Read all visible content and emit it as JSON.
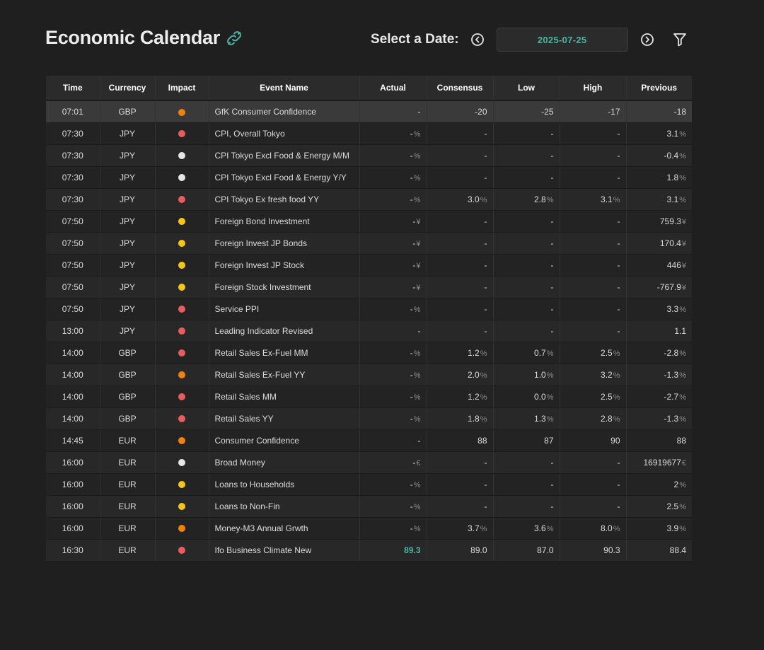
{
  "header": {
    "title": "Economic Calendar",
    "title_icon": "link-icon",
    "date_label": "Select a Date:",
    "selected_date": "2025-07-25",
    "prev_icon": "chevron-left-circle-icon",
    "next_icon": "chevron-right-circle-icon",
    "filter_icon": "filter-icon"
  },
  "impact_colors": {
    "high": "#e85d5d",
    "medium": "#f0820f",
    "low": "#f5c518",
    "none": "#e6e6e6"
  },
  "accent_color": "#4fb3a4",
  "table": {
    "columns": [
      "Time",
      "Currency",
      "Impact",
      "Event Name",
      "Actual",
      "Consensus",
      "Low",
      "High",
      "Previous"
    ],
    "rows": [
      {
        "time": "07:01",
        "currency": "GBP",
        "impact": "medium",
        "event": "GfK Consumer Confidence",
        "actual": {
          "v": "-",
          "u": ""
        },
        "consensus": {
          "v": "-20",
          "u": ""
        },
        "low": {
          "v": "-25",
          "u": ""
        },
        "high": {
          "v": "-17",
          "u": ""
        },
        "previous": {
          "v": "-18",
          "u": ""
        }
      },
      {
        "time": "07:30",
        "currency": "JPY",
        "impact": "high",
        "event": "CPI, Overall Tokyo",
        "actual": {
          "v": "-",
          "u": "%"
        },
        "consensus": {
          "v": "-",
          "u": ""
        },
        "low": {
          "v": "-",
          "u": ""
        },
        "high": {
          "v": "-",
          "u": ""
        },
        "previous": {
          "v": "3.1",
          "u": "%"
        }
      },
      {
        "time": "07:30",
        "currency": "JPY",
        "impact": "none",
        "event": "CPI Tokyo Excl Food & Energy M/M",
        "actual": {
          "v": "-",
          "u": "%"
        },
        "consensus": {
          "v": "-",
          "u": ""
        },
        "low": {
          "v": "-",
          "u": ""
        },
        "high": {
          "v": "-",
          "u": ""
        },
        "previous": {
          "v": "-0.4",
          "u": "%"
        }
      },
      {
        "time": "07:30",
        "currency": "JPY",
        "impact": "none",
        "event": "CPI Tokyo Excl Food & Energy Y/Y",
        "actual": {
          "v": "-",
          "u": "%"
        },
        "consensus": {
          "v": "-",
          "u": ""
        },
        "low": {
          "v": "-",
          "u": ""
        },
        "high": {
          "v": "-",
          "u": ""
        },
        "previous": {
          "v": "1.8",
          "u": "%"
        }
      },
      {
        "time": "07:30",
        "currency": "JPY",
        "impact": "high",
        "event": "CPI Tokyo Ex fresh food YY",
        "actual": {
          "v": "-",
          "u": "%"
        },
        "consensus": {
          "v": "3.0",
          "u": "%"
        },
        "low": {
          "v": "2.8",
          "u": "%"
        },
        "high": {
          "v": "3.1",
          "u": "%"
        },
        "previous": {
          "v": "3.1",
          "u": "%"
        }
      },
      {
        "time": "07:50",
        "currency": "JPY",
        "impact": "low",
        "event": "Foreign Bond Investment",
        "actual": {
          "v": "-",
          "u": "¥"
        },
        "consensus": {
          "v": "-",
          "u": ""
        },
        "low": {
          "v": "-",
          "u": ""
        },
        "high": {
          "v": "-",
          "u": ""
        },
        "previous": {
          "v": "759.3",
          "u": "¥"
        }
      },
      {
        "time": "07:50",
        "currency": "JPY",
        "impact": "low",
        "event": "Foreign Invest JP Bonds",
        "actual": {
          "v": "-",
          "u": "¥"
        },
        "consensus": {
          "v": "-",
          "u": ""
        },
        "low": {
          "v": "-",
          "u": ""
        },
        "high": {
          "v": "-",
          "u": ""
        },
        "previous": {
          "v": "170.4",
          "u": "¥"
        }
      },
      {
        "time": "07:50",
        "currency": "JPY",
        "impact": "low",
        "event": "Foreign Invest JP Stock",
        "actual": {
          "v": "-",
          "u": "¥"
        },
        "consensus": {
          "v": "-",
          "u": ""
        },
        "low": {
          "v": "-",
          "u": ""
        },
        "high": {
          "v": "-",
          "u": ""
        },
        "previous": {
          "v": "446",
          "u": "¥"
        }
      },
      {
        "time": "07:50",
        "currency": "JPY",
        "impact": "low",
        "event": "Foreign Stock Investment",
        "actual": {
          "v": "-",
          "u": "¥"
        },
        "consensus": {
          "v": "-",
          "u": ""
        },
        "low": {
          "v": "-",
          "u": ""
        },
        "high": {
          "v": "-",
          "u": ""
        },
        "previous": {
          "v": "-767.9",
          "u": "¥"
        }
      },
      {
        "time": "07:50",
        "currency": "JPY",
        "impact": "high",
        "event": "Service PPI",
        "actual": {
          "v": "-",
          "u": "%"
        },
        "consensus": {
          "v": "-",
          "u": ""
        },
        "low": {
          "v": "-",
          "u": ""
        },
        "high": {
          "v": "-",
          "u": ""
        },
        "previous": {
          "v": "3.3",
          "u": "%"
        }
      },
      {
        "time": "13:00",
        "currency": "JPY",
        "impact": "high",
        "event": "Leading Indicator Revised",
        "actual": {
          "v": "-",
          "u": ""
        },
        "consensus": {
          "v": "-",
          "u": ""
        },
        "low": {
          "v": "-",
          "u": ""
        },
        "high": {
          "v": "-",
          "u": ""
        },
        "previous": {
          "v": "1.1",
          "u": ""
        }
      },
      {
        "time": "14:00",
        "currency": "GBP",
        "impact": "high",
        "event": "Retail Sales Ex-Fuel MM",
        "actual": {
          "v": "-",
          "u": "%"
        },
        "consensus": {
          "v": "1.2",
          "u": "%"
        },
        "low": {
          "v": "0.7",
          "u": "%"
        },
        "high": {
          "v": "2.5",
          "u": "%"
        },
        "previous": {
          "v": "-2.8",
          "u": "%"
        }
      },
      {
        "time": "14:00",
        "currency": "GBP",
        "impact": "medium",
        "event": "Retail Sales Ex-Fuel YY",
        "actual": {
          "v": "-",
          "u": "%"
        },
        "consensus": {
          "v": "2.0",
          "u": "%"
        },
        "low": {
          "v": "1.0",
          "u": "%"
        },
        "high": {
          "v": "3.2",
          "u": "%"
        },
        "previous": {
          "v": "-1.3",
          "u": "%"
        }
      },
      {
        "time": "14:00",
        "currency": "GBP",
        "impact": "high",
        "event": "Retail Sales MM",
        "actual": {
          "v": "-",
          "u": "%"
        },
        "consensus": {
          "v": "1.2",
          "u": "%"
        },
        "low": {
          "v": "0.0",
          "u": "%"
        },
        "high": {
          "v": "2.5",
          "u": "%"
        },
        "previous": {
          "v": "-2.7",
          "u": "%"
        }
      },
      {
        "time": "14:00",
        "currency": "GBP",
        "impact": "high",
        "event": "Retail Sales YY",
        "actual": {
          "v": "-",
          "u": "%"
        },
        "consensus": {
          "v": "1.8",
          "u": "%"
        },
        "low": {
          "v": "1.3",
          "u": "%"
        },
        "high": {
          "v": "2.8",
          "u": "%"
        },
        "previous": {
          "v": "-1.3",
          "u": "%"
        }
      },
      {
        "time": "14:45",
        "currency": "EUR",
        "impact": "medium",
        "event": "Consumer Confidence",
        "actual": {
          "v": "-",
          "u": ""
        },
        "consensus": {
          "v": "88",
          "u": ""
        },
        "low": {
          "v": "87",
          "u": ""
        },
        "high": {
          "v": "90",
          "u": ""
        },
        "previous": {
          "v": "88",
          "u": ""
        }
      },
      {
        "time": "16:00",
        "currency": "EUR",
        "impact": "none",
        "event": "Broad Money",
        "actual": {
          "v": "-",
          "u": "€"
        },
        "consensus": {
          "v": "-",
          "u": ""
        },
        "low": {
          "v": "-",
          "u": ""
        },
        "high": {
          "v": "-",
          "u": ""
        },
        "previous": {
          "v": "16919677",
          "u": "€"
        }
      },
      {
        "time": "16:00",
        "currency": "EUR",
        "impact": "low",
        "event": "Loans to Households",
        "actual": {
          "v": "-",
          "u": "%"
        },
        "consensus": {
          "v": "-",
          "u": ""
        },
        "low": {
          "v": "-",
          "u": ""
        },
        "high": {
          "v": "-",
          "u": ""
        },
        "previous": {
          "v": "2",
          "u": "%"
        }
      },
      {
        "time": "16:00",
        "currency": "EUR",
        "impact": "low",
        "event": "Loans to Non-Fin",
        "actual": {
          "v": "-",
          "u": "%"
        },
        "consensus": {
          "v": "-",
          "u": ""
        },
        "low": {
          "v": "-",
          "u": ""
        },
        "high": {
          "v": "-",
          "u": ""
        },
        "previous": {
          "v": "2.5",
          "u": "%"
        }
      },
      {
        "time": "16:00",
        "currency": "EUR",
        "impact": "medium",
        "event": "Money-M3 Annual Grwth",
        "actual": {
          "v": "-",
          "u": "%"
        },
        "consensus": {
          "v": "3.7",
          "u": "%"
        },
        "low": {
          "v": "3.6",
          "u": "%"
        },
        "high": {
          "v": "8.0",
          "u": "%"
        },
        "previous": {
          "v": "3.9",
          "u": "%"
        }
      },
      {
        "time": "16:30",
        "currency": "EUR",
        "impact": "high",
        "event": "Ifo Business Climate New",
        "actual": {
          "v": "89.3",
          "u": "",
          "positive": true
        },
        "consensus": {
          "v": "89.0",
          "u": ""
        },
        "low": {
          "v": "87.0",
          "u": ""
        },
        "high": {
          "v": "90.3",
          "u": ""
        },
        "previous": {
          "v": "88.4",
          "u": ""
        }
      }
    ]
  }
}
